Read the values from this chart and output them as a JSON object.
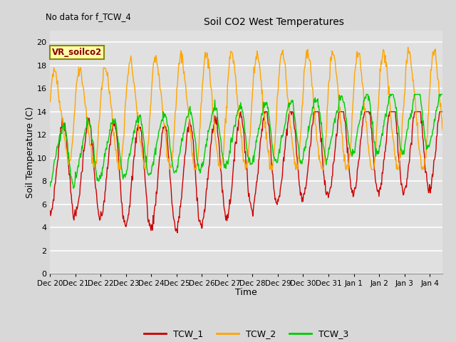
{
  "title": "Soil CO2 West Temperatures",
  "subtitle": "No data for f_TCW_4",
  "xlabel": "Time",
  "ylabel": "Soil Temperature (C)",
  "annotation": "VR_soilco2",
  "ylim": [
    0,
    21
  ],
  "yticks": [
    0,
    2,
    4,
    6,
    8,
    10,
    12,
    14,
    16,
    18,
    20
  ],
  "bg_color": "#d8d8d8",
  "plot_bg_color": "#e0e0e0",
  "grid_color": "#ffffff",
  "colors": {
    "TCW_1": "#cc0000",
    "TCW_2": "#ffa500",
    "TCW_3": "#00cc00"
  },
  "legend_labels": [
    "TCW_1",
    "TCW_2",
    "TCW_3"
  ],
  "xtick_labels": [
    "Dec 20",
    "Dec 21",
    "Dec 22",
    "Dec 23",
    "Dec 24",
    "Dec 25",
    "Dec 26",
    "Dec 27",
    "Dec 28",
    "Dec 29",
    "Dec 30",
    "Dec 31",
    "Jan 1",
    "Jan 2",
    "Jan 3",
    "Jan 4"
  ]
}
